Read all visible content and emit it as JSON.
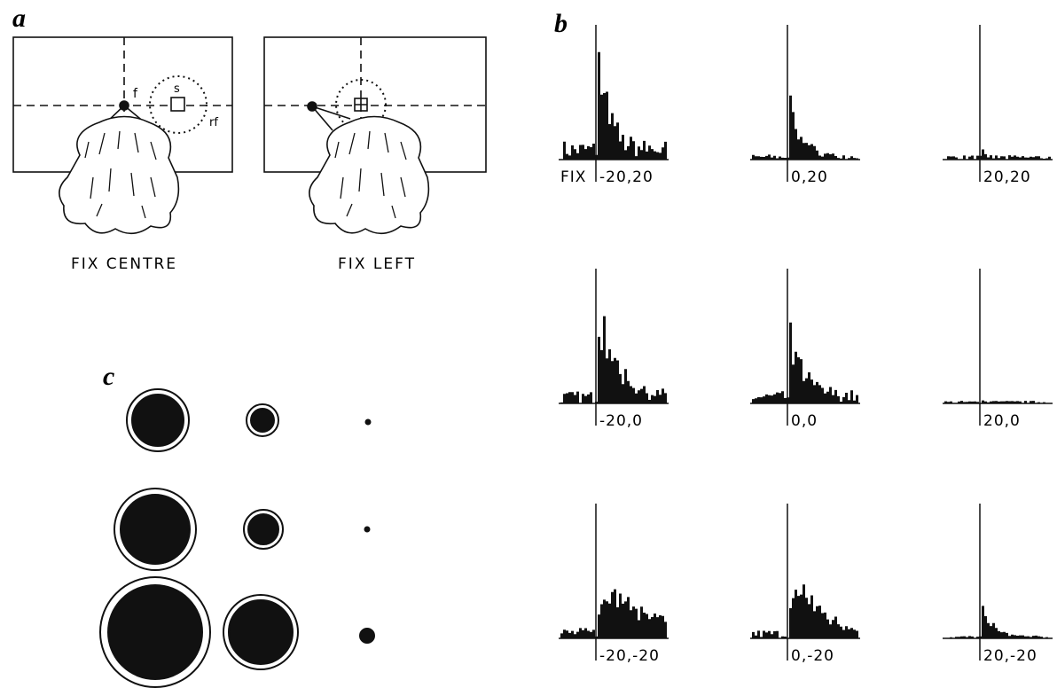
{
  "panel_a": {
    "label": "a",
    "left": {
      "caption": "FIX CENTRE",
      "fixation_mark": "f",
      "stimulus_mark": "s",
      "field_mark": "rf"
    },
    "right": {
      "caption": "FIX LEFT"
    }
  },
  "panel_b": {
    "label": "b",
    "fix_label": "FIX",
    "histograms": [
      "-20,20",
      "0,20",
      "20,20",
      "-20,0",
      "0,0",
      "20,0",
      "-20,-20",
      "0,-20",
      "20,-20"
    ]
  },
  "panel_c": {
    "label": "c"
  }
}
